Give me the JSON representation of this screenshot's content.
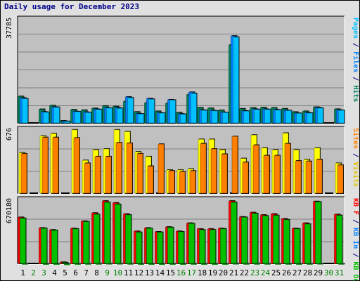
{
  "title": "Daily usage for December 2023",
  "colors": {
    "frame_bg": "#e0e0e0",
    "panel_bg": "#c0c0c0",
    "gridline": "#808080",
    "shadow": "#000000",
    "label_blue": "#00008b",
    "day_weekday": "#000000",
    "day_weekend": "#008000",
    "pages": "#00c0ff",
    "files": "#0080ff",
    "hits": "#00805c",
    "visits": "#ffff00",
    "sites": "#ff8000",
    "kb_in": "#00c000",
    "kb_out": "#ff0000"
  },
  "chart_data": [
    {
      "type": "bar",
      "title": "Daily usage for December 2023",
      "panel": "top",
      "categories": [
        "1",
        "2",
        "3",
        "4",
        "5",
        "6",
        "7",
        "8",
        "9",
        "10",
        "11",
        "12",
        "13",
        "14",
        "15",
        "16",
        "17",
        "18",
        "19",
        "20",
        "21",
        "22",
        "23",
        "24",
        "25",
        "26",
        "27",
        "28",
        "29",
        "30",
        "31"
      ],
      "weekend_days": [
        "2",
        "3",
        "9",
        "10",
        "16",
        "17",
        "23",
        "24",
        "30",
        "31"
      ],
      "y_max_label": "37785",
      "ylim": [
        0,
        37785
      ],
      "grid": true,
      "series": [
        {
          "name": "Hits",
          "color": "#00805c",
          "values": [
            9810,
            0,
            5170,
            6520,
            1000,
            5030,
            4870,
            5500,
            6370,
            6190,
            8000,
            4230,
            7470,
            4440,
            7300,
            3970,
            10440,
            5740,
            5560,
            4810,
            28390,
            5370,
            5660,
            5810,
            5710,
            5370,
            4190,
            4450,
            5940,
            0,
            5210
          ]
        },
        {
          "name": "Files",
          "color": "#0080ff",
          "values": [
            9250,
            0,
            4240,
            5980,
            830,
            4380,
            4130,
            5200,
            5700,
            5680,
            9650,
            3600,
            9040,
            3860,
            8630,
            3510,
            11330,
            4890,
            4710,
            4080,
            31640,
            4580,
            5220,
            5220,
            5030,
            4770,
            3740,
            3920,
            5760,
            0,
            4890
          ]
        },
        {
          "name": "Pages",
          "color": "#00c0ff",
          "values": [
            9000,
            0,
            4100,
            5900,
            800,
            4300,
            4000,
            5100,
            5600,
            5500,
            9300,
            3500,
            8800,
            3800,
            8500,
            3400,
            10900,
            4800,
            4600,
            4000,
            31200,
            4500,
            5100,
            5100,
            4900,
            4700,
            3700,
            3800,
            5600,
            0,
            4800
          ]
        }
      ]
    },
    {
      "type": "bar",
      "panel": "middle",
      "categories": [
        "1",
        "2",
        "3",
        "4",
        "5",
        "6",
        "7",
        "8",
        "9",
        "10",
        "11",
        "12",
        "13",
        "14",
        "15",
        "16",
        "17",
        "18",
        "19",
        "20",
        "21",
        "22",
        "23",
        "24",
        "25",
        "26",
        "27",
        "28",
        "29",
        "30",
        "31"
      ],
      "y_max_label": "676",
      "ylim": [
        0,
        676
      ],
      "grid": true,
      "series": [
        {
          "name": "Visits",
          "color": "#ffff00",
          "values": [
            430,
            0,
            605,
            630,
            0,
            670,
            350,
            460,
            470,
            670,
            650,
            440,
            390,
            0,
            250,
            250,
            260,
            570,
            570,
            460,
            0,
            370,
            615,
            480,
            460,
            635,
            460,
            360,
            480,
            0,
            320
          ]
        },
        {
          "name": "Sites",
          "color": "#ff8000",
          "values": [
            420,
            0,
            590,
            590,
            0,
            585,
            320,
            390,
            390,
            535,
            530,
            420,
            290,
            520,
            240,
            230,
            240,
            525,
            470,
            415,
            600,
            330,
            510,
            400,
            400,
            525,
            345,
            340,
            360,
            0,
            300
          ]
        }
      ]
    },
    {
      "type": "bar",
      "panel": "bottom",
      "categories": [
        "1",
        "2",
        "3",
        "4",
        "5",
        "6",
        "7",
        "8",
        "9",
        "10",
        "11",
        "12",
        "13",
        "14",
        "15",
        "16",
        "17",
        "18",
        "19",
        "20",
        "21",
        "22",
        "23",
        "24",
        "25",
        "26",
        "27",
        "28",
        "29",
        "30",
        "31"
      ],
      "y_max_label": "670180",
      "ylim": [
        0,
        670180
      ],
      "grid": true,
      "series": [
        {
          "name": "KB F",
          "color": "#ff0000",
          "values": [
            485000,
            0,
            375000,
            355000,
            20000,
            370000,
            445000,
            530000,
            655000,
            635000,
            520000,
            340000,
            375000,
            335000,
            385000,
            340000,
            425000,
            365000,
            365000,
            370000,
            655000,
            490000,
            535000,
            510000,
            520000,
            470000,
            370000,
            425000,
            650000,
            0,
            515000
          ]
        },
        {
          "name": "KB In",
          "color": "#00c000",
          "values": [
            475000,
            0,
            370000,
            350000,
            15000,
            365000,
            440000,
            515000,
            640000,
            620000,
            510000,
            330000,
            370000,
            330000,
            380000,
            335000,
            420000,
            355000,
            355000,
            365000,
            640000,
            485000,
            525000,
            500000,
            505000,
            460000,
            365000,
            415000,
            645000,
            0,
            505000
          ]
        },
        {
          "name": "KB Out",
          "color": "#00c000",
          "values": [
            5000,
            0,
            3500,
            3300,
            200,
            3400,
            4100,
            4800,
            6000,
            5800,
            4800,
            3100,
            3400,
            3000,
            3500,
            3100,
            3900,
            3300,
            3300,
            3400,
            6000,
            4500,
            4900,
            4700,
            4700,
            4300,
            3400,
            3900,
            6000,
            0,
            4700
          ]
        }
      ]
    }
  ],
  "side_labels": {
    "top": [
      {
        "text": "Pages",
        "color": "#00c0ff"
      },
      {
        "text": " / ",
        "color": "#00008b"
      },
      {
        "text": "Files",
        "color": "#0080ff"
      },
      {
        "text": " / ",
        "color": "#00008b"
      },
      {
        "text": "Hits",
        "color": "#00805c"
      }
    ],
    "middle": [
      {
        "text": "Sites",
        "color": "#ff8000"
      },
      {
        "text": " / ",
        "color": "#00008b"
      },
      {
        "text": "Visits",
        "color": "#e0c000"
      }
    ],
    "bottom": [
      {
        "text": "KB F",
        "color": "#ff0000"
      },
      {
        "text": " / ",
        "color": "#00008b"
      },
      {
        "text": "KB In",
        "color": "#0080ff"
      },
      {
        "text": " / ",
        "color": "#00008b"
      },
      {
        "text": "KB Out",
        "color": "#00c000"
      }
    ]
  }
}
